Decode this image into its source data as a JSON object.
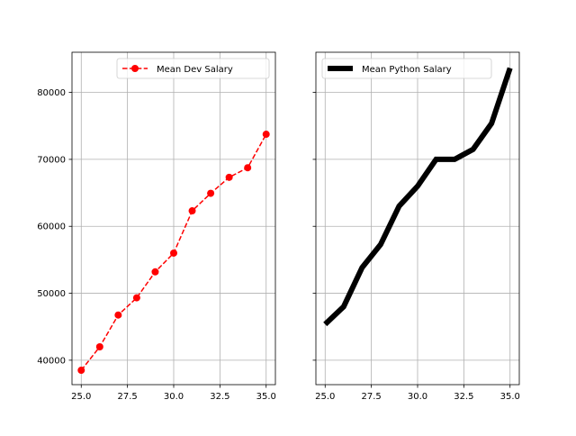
{
  "chart_data": [
    {
      "type": "line",
      "x": [
        25,
        26,
        27,
        28,
        29,
        30,
        31,
        32,
        33,
        34,
        35
      ],
      "series": [
        {
          "name": "Mean Dev Salary",
          "values": [
            38496,
            42000,
            46752,
            49320,
            53200,
            56000,
            62316,
            64928,
            67317,
            68748,
            73752
          ],
          "color": "#ff0000",
          "line_style": "dashed",
          "marker": "circle"
        }
      ],
      "xlim": [
        24.5,
        35.5
      ],
      "ylim": [
        36350,
        86000
      ],
      "x_ticks": [
        "25.0",
        "27.5",
        "30.0",
        "32.5",
        "35.0"
      ],
      "x_tick_values": [
        25,
        27.5,
        30,
        32.5,
        35
      ],
      "y_ticks": [
        "40000",
        "50000",
        "60000",
        "70000",
        "80000"
      ],
      "y_tick_values": [
        40000,
        50000,
        60000,
        70000,
        80000
      ],
      "grid": true,
      "legend_position": "top-right",
      "title": "",
      "xlabel": "",
      "ylabel": ""
    },
    {
      "type": "line",
      "x": [
        25,
        26,
        27,
        28,
        29,
        30,
        31,
        32,
        33,
        34,
        35
      ],
      "series": [
        {
          "name": "Mean Python Salary",
          "values": [
            45372,
            48000,
            53850,
            57287,
            63016,
            65998,
            70003,
            70000,
            71496,
            75370,
            83640
          ],
          "color": "#000000",
          "line_style": "solid",
          "marker": "none"
        }
      ],
      "xlim": [
        24.5,
        35.5
      ],
      "ylim": [
        36350,
        86000
      ],
      "x_ticks": [
        "25.0",
        "27.5",
        "30.0",
        "32.5",
        "35.0"
      ],
      "x_tick_values": [
        25,
        27.5,
        30,
        32.5,
        35
      ],
      "y_ticks": [
        "",
        "",
        "",
        "",
        ""
      ],
      "y_tick_values": [
        40000,
        50000,
        60000,
        70000,
        80000
      ],
      "shared_y": true,
      "grid": true,
      "legend_position": "top-left",
      "title": "",
      "xlabel": "",
      "ylabel": ""
    }
  ]
}
